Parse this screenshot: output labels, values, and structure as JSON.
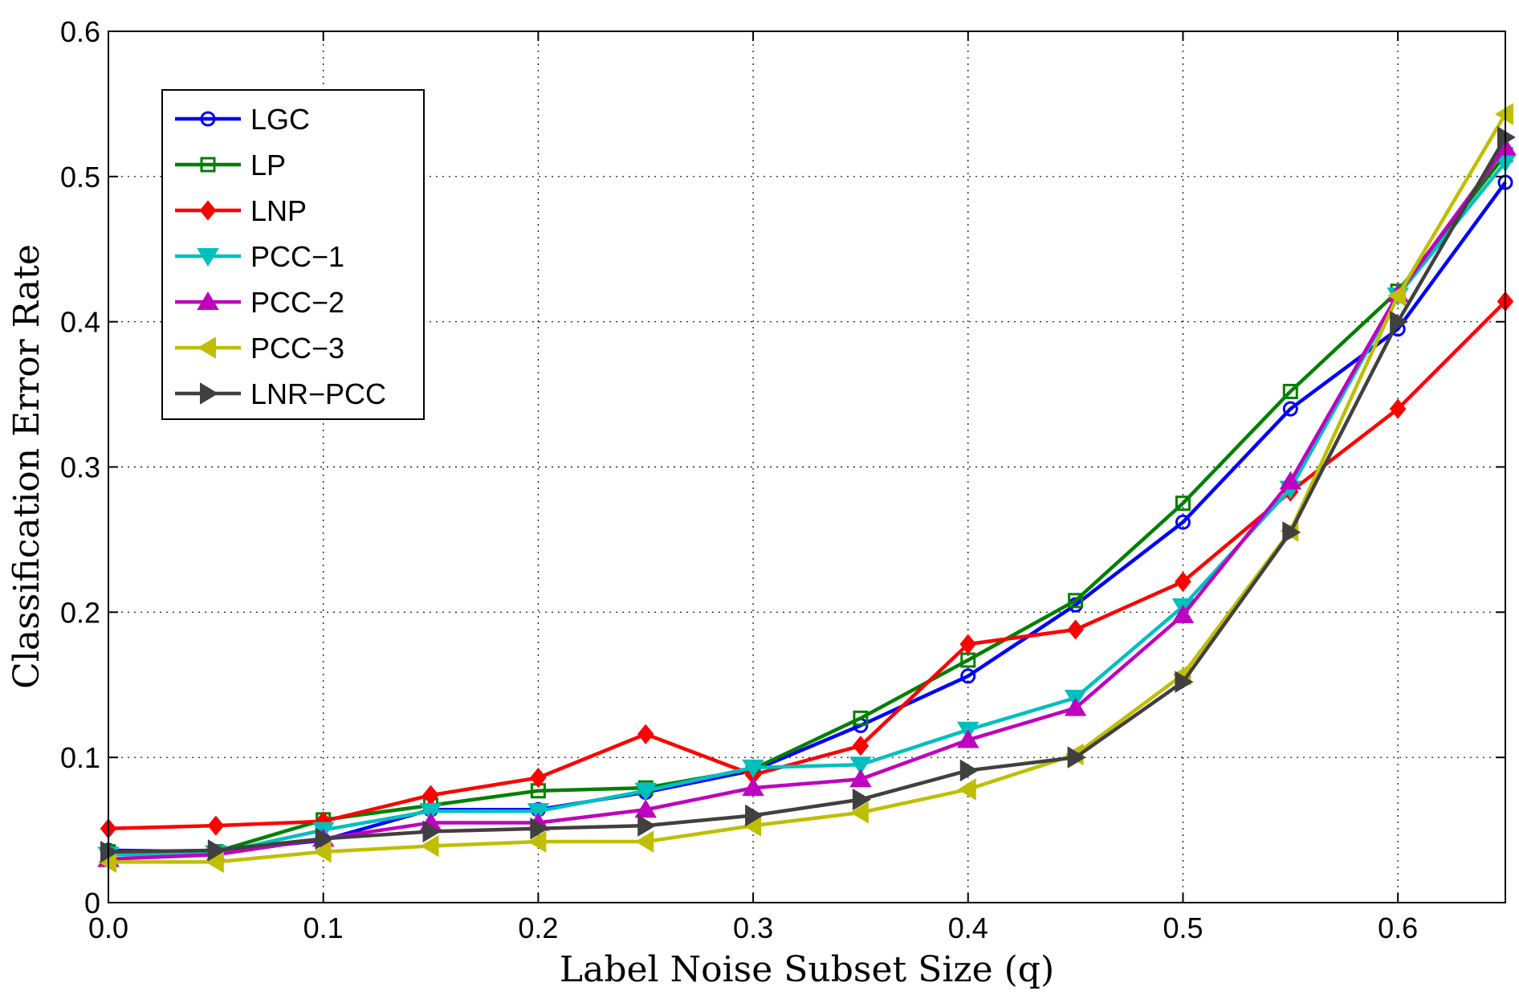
{
  "chart_data": {
    "type": "line",
    "title": "",
    "xlabel": "Label Noise Subset Size (q)",
    "ylabel": "Classification Error Rate",
    "xlim": [
      0,
      0.65
    ],
    "ylim": [
      0,
      0.6
    ],
    "xticks": [
      "0.0",
      "0.1",
      "0.2",
      "0.3",
      "0.4",
      "0.5",
      "0.6"
    ],
    "yticks": [
      "0",
      "0.1",
      "0.2",
      "0.3",
      "0.4",
      "0.5",
      "0.6"
    ],
    "grid": true,
    "legend_position": "top-left",
    "x": [
      0.0,
      0.05,
      0.1,
      0.15,
      0.2,
      0.25,
      0.3,
      0.35,
      0.4,
      0.45,
      0.5,
      0.55,
      0.6,
      0.65
    ],
    "series": [
      {
        "name": "LGC",
        "color": "#0000ff",
        "marker": "circle",
        "values": [
          0.036,
          0.035,
          0.043,
          0.064,
          0.064,
          0.076,
          0.091,
          0.122,
          0.156,
          0.205,
          0.262,
          0.34,
          0.395,
          0.496
        ]
      },
      {
        "name": "LP",
        "color": "#008000",
        "marker": "square",
        "values": [
          0.035,
          0.035,
          0.057,
          0.067,
          0.077,
          0.079,
          0.092,
          0.127,
          0.167,
          0.208,
          0.275,
          0.352,
          0.421,
          0.515
        ]
      },
      {
        "name": "LNP",
        "color": "#ff0000",
        "marker": "diamond",
        "values": [
          0.051,
          0.053,
          0.056,
          0.074,
          0.086,
          0.116,
          0.088,
          0.108,
          0.178,
          0.188,
          0.221,
          0.283,
          0.34,
          0.414
        ]
      },
      {
        "name": "PCC−1",
        "color": "#00bfbf",
        "marker": "triangle-down",
        "values": [
          0.033,
          0.034,
          0.05,
          0.063,
          0.063,
          0.077,
          0.093,
          0.095,
          0.119,
          0.141,
          0.204,
          0.285,
          0.418,
          0.51
        ]
      },
      {
        "name": "PCC−2",
        "color": "#bf00bf",
        "marker": "triangle-up",
        "values": [
          0.03,
          0.033,
          0.044,
          0.055,
          0.055,
          0.064,
          0.079,
          0.085,
          0.112,
          0.134,
          0.198,
          0.29,
          0.419,
          0.52
        ]
      },
      {
        "name": "PCC−3",
        "color": "#bfbf00",
        "marker": "triangle-left",
        "values": [
          0.028,
          0.028,
          0.035,
          0.039,
          0.042,
          0.042,
          0.053,
          0.062,
          0.078,
          0.102,
          0.157,
          0.256,
          0.418,
          0.543
        ]
      },
      {
        "name": "LNR−PCC",
        "color": "#404040",
        "marker": "triangle-right",
        "values": [
          0.035,
          0.036,
          0.044,
          0.049,
          0.051,
          0.053,
          0.06,
          0.071,
          0.091,
          0.1,
          0.152,
          0.255,
          0.4,
          0.527
        ]
      }
    ]
  }
}
